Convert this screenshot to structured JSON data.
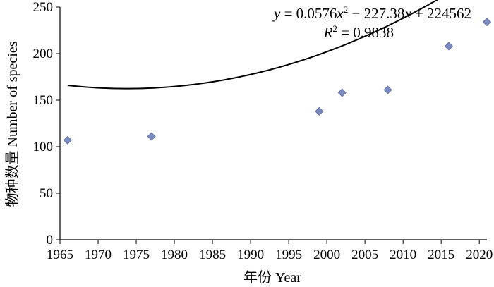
{
  "chart_data": {
    "type": "scatter",
    "xlabel": "年份 Year",
    "ylabel": "物种数量 Number of species",
    "xlim": [
      1965,
      2021
    ],
    "ylim": [
      0,
      250
    ],
    "x_ticks": [
      1965,
      1970,
      1975,
      1980,
      1985,
      1990,
      1995,
      2000,
      2005,
      2010,
      2015,
      2020
    ],
    "y_ticks": [
      0,
      50,
      100,
      150,
      200,
      250
    ],
    "grid": false,
    "marker_color": "#7b8bbf",
    "series": [
      {
        "x": [
          1966,
          1977,
          1999,
          2002,
          2008,
          2016,
          2021
        ],
        "y": [
          107,
          111,
          138,
          158,
          161,
          208,
          234
        ]
      }
    ],
    "trendline": {
      "type": "polynomial",
      "coefficients": [
        0.0576,
        -227.38,
        224562
      ],
      "x_range": [
        1966,
        2021
      ],
      "equation_parts": {
        "y": "y",
        "eq1": " = 0.0576",
        "x1": "x",
        "sup": "2",
        "eq2": " − 227.38",
        "x2": "x",
        "eq3": " + 224562"
      },
      "r2_parts": {
        "r": "R",
        "sup": "2",
        "rest": " = 0.9838"
      }
    }
  }
}
